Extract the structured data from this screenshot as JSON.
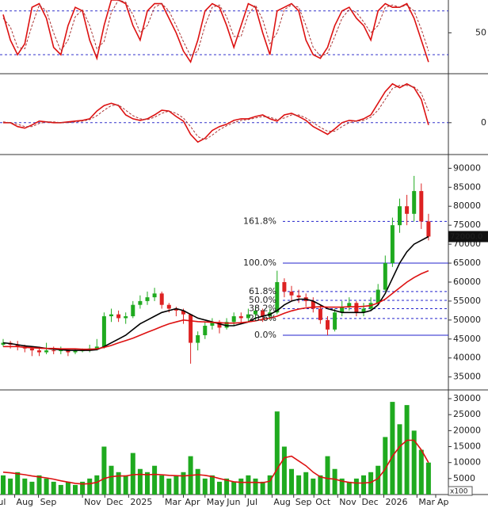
{
  "chart_data": [
    {
      "type": "line",
      "ylim": [
        -5,
        95
      ],
      "yticks": [
        50
      ],
      "levels": [
        20,
        80
      ],
      "level_color": "#3333cc",
      "series": [
        {
          "color": "#dd1111",
          "values": [
            75,
            40,
            20,
            35,
            85,
            90,
            70,
            30,
            20,
            60,
            85,
            80,
            40,
            15,
            60,
            95,
            95,
            90,
            60,
            40,
            80,
            90,
            90,
            70,
            50,
            25,
            10,
            40,
            80,
            90,
            85,
            60,
            30,
            60,
            90,
            85,
            50,
            20,
            80,
            85,
            90,
            80,
            40,
            20,
            15,
            30,
            60,
            80,
            85,
            70,
            60,
            40,
            80,
            90,
            85,
            85,
            90,
            70,
            40,
            10
          ]
        },
        {
          "color": "#aa3333",
          "dash": true,
          "values": [
            70,
            58,
            30,
            28,
            60,
            88,
            80,
            50,
            25,
            40,
            72,
            82,
            60,
            28,
            38,
            78,
            95,
            92,
            75,
            50,
            60,
            85,
            90,
            80,
            60,
            38,
            18,
            25,
            60,
            85,
            88,
            72,
            45,
            45,
            75,
            88,
            68,
            35,
            50,
            82,
            88,
            85,
            60,
            30,
            18,
            22,
            45,
            70,
            82,
            78,
            65,
            50,
            60,
            85,
            88,
            85,
            88,
            80,
            55,
            25
          ]
        }
      ]
    },
    {
      "type": "line",
      "ylim": [
        -40,
        60
      ],
      "yticks": [
        0
      ],
      "levels": [
        0
      ],
      "level_color": "#3333cc",
      "series": [
        {
          "color": "#dd1111",
          "values": [
            0,
            0,
            -5,
            -7,
            -3,
            2,
            1,
            0,
            0,
            1,
            2,
            3,
            5,
            15,
            22,
            25,
            22,
            10,
            5,
            3,
            5,
            10,
            16,
            15,
            8,
            2,
            -15,
            -25,
            -20,
            -10,
            -5,
            -2,
            3,
            5,
            5,
            8,
            10,
            5,
            2,
            10,
            12,
            8,
            3,
            -5,
            -10,
            -15,
            -8,
            0,
            3,
            2,
            5,
            10,
            25,
            40,
            50,
            45,
            50,
            45,
            30,
            -3
          ]
        },
        {
          "color": "#aa3333",
          "dash": true,
          "values": [
            1,
            0,
            -2,
            -5,
            -5,
            -1,
            1,
            1,
            0,
            0,
            1,
            2,
            4,
            9,
            16,
            22,
            23,
            16,
            9,
            5,
            4,
            7,
            12,
            15,
            12,
            6,
            -5,
            -18,
            -22,
            -16,
            -9,
            -4,
            0,
            3,
            4,
            6,
            8,
            7,
            4,
            6,
            10,
            10,
            6,
            0,
            -6,
            -11,
            -11,
            -5,
            0,
            2,
            3,
            7,
            16,
            30,
            44,
            48,
            48,
            46,
            38,
            15
          ]
        }
      ]
    },
    {
      "type": "candlestick",
      "ylim": [
        32000,
        93000
      ],
      "yticks": [
        35000,
        40000,
        45000,
        50000,
        55000,
        60000,
        65000,
        70000,
        75000,
        80000,
        85000,
        90000
      ],
      "up_color": "#1faa1f",
      "down_color": "#dd2222",
      "open": [
        43500,
        44000,
        43500,
        43000,
        42500,
        42000,
        41500,
        42000,
        41800,
        42200,
        41500,
        42000,
        42000,
        42500,
        43000,
        51000,
        51500,
        50500,
        51000,
        54000,
        55000,
        56000,
        57000,
        54000,
        53000,
        52500,
        51500,
        44000,
        46000,
        48500,
        49500,
        48000,
        49500,
        51000,
        50500,
        51500,
        52500,
        51000,
        52000,
        60000,
        57500,
        56500,
        56000,
        55000,
        53000,
        50000,
        47500,
        52000,
        53500,
        54500,
        52000,
        53000,
        54500,
        58000,
        65000,
        75000,
        80000,
        78000,
        84000,
        76000
      ],
      "high": [
        45000,
        44500,
        44500,
        43500,
        43000,
        43000,
        44000,
        43000,
        43000,
        42500,
        42500,
        42500,
        43500,
        45000,
        52000,
        53000,
        52500,
        52000,
        55000,
        56500,
        57500,
        58500,
        57500,
        54500,
        53500,
        53000,
        51500,
        47000,
        49500,
        50500,
        50000,
        50500,
        52000,
        52000,
        53000,
        53500,
        53000,
        53000,
        63000,
        61000,
        59000,
        58000,
        57000,
        56000,
        54000,
        51000,
        53000,
        55000,
        56000,
        55000,
        54500,
        56000,
        59500,
        67000,
        77000,
        82000,
        83000,
        88000,
        86000,
        78000
      ],
      "low": [
        43000,
        42500,
        42000,
        41500,
        40500,
        40500,
        41000,
        41000,
        41000,
        40500,
        41000,
        41500,
        41500,
        42000,
        42500,
        49500,
        49500,
        49000,
        50500,
        53000,
        54000,
        55000,
        53000,
        52000,
        51000,
        49000,
        38500,
        42000,
        45000,
        47500,
        46500,
        47500,
        48500,
        49000,
        49500,
        50000,
        49500,
        50000,
        51500,
        56000,
        55000,
        54500,
        53500,
        52000,
        49000,
        46000,
        47000,
        51000,
        52500,
        51000,
        51000,
        52500,
        54000,
        57500,
        64000,
        73000,
        75000,
        76000,
        74000,
        71000
      ],
      "close": [
        44000,
        43500,
        43000,
        42500,
        42000,
        41500,
        42000,
        41800,
        42200,
        41500,
        42000,
        42000,
        42500,
        43000,
        51000,
        51500,
        50500,
        51000,
        54000,
        55000,
        56000,
        57000,
        54000,
        53000,
        52500,
        51500,
        44000,
        46000,
        48500,
        49500,
        48000,
        49500,
        51000,
        50500,
        51500,
        52500,
        51000,
        52000,
        60000,
        57500,
        56500,
        56000,
        55000,
        53000,
        50000,
        47500,
        52000,
        53500,
        54500,
        52000,
        53000,
        54500,
        58000,
        65000,
        75000,
        80000,
        78000,
        84000,
        76000,
        72000
      ],
      "overlays": [
        {
          "color": "#000000",
          "values": [
            44000,
            43800,
            43500,
            43200,
            43000,
            42800,
            42500,
            42300,
            42200,
            42000,
            42000,
            42000,
            42000,
            42200,
            43000,
            44000,
            45000,
            46000,
            47500,
            49000,
            50000,
            51000,
            52000,
            52500,
            53000,
            52500,
            51500,
            50500,
            50000,
            49500,
            49000,
            48500,
            48500,
            49000,
            49500,
            50500,
            51000,
            51500,
            52500,
            54000,
            55000,
            55500,
            55500,
            55000,
            54000,
            53000,
            52500,
            52000,
            52000,
            52000,
            52000,
            52500,
            54000,
            57000,
            61000,
            65000,
            68000,
            70000,
            71000,
            72000
          ]
        },
        {
          "color": "#dd1111",
          "values": [
            43000,
            43000,
            43000,
            42800,
            42700,
            42600,
            42500,
            42500,
            42400,
            42400,
            42400,
            42300,
            42300,
            42400,
            42800,
            43300,
            44000,
            44600,
            45200,
            46000,
            46800,
            47500,
            48300,
            49000,
            49500,
            50000,
            49800,
            49600,
            49500,
            49400,
            49300,
            49200,
            49200,
            49300,
            49500,
            49800,
            50200,
            50500,
            51000,
            51800,
            52400,
            52900,
            53200,
            53400,
            53500,
            53400,
            53400,
            53400,
            53500,
            53500,
            53600,
            53800,
            54500,
            55500,
            57000,
            58500,
            60000,
            61200,
            62200,
            63000
          ]
        }
      ],
      "fib_levels": [
        {
          "label": "161.8%",
          "value": 76000,
          "dashed": true
        },
        {
          "label": "100.0%",
          "value": 65000,
          "dashed": false
        },
        {
          "label": "61.8%",
          "value": 57500,
          "dashed": true
        },
        {
          "label": "50.0%",
          "value": 55200,
          "dashed": true
        },
        {
          "label": "38.2%",
          "value": 53000,
          "dashed": true
        },
        {
          "label": "23.6%",
          "value": 50400,
          "dashed": true
        },
        {
          "label": "0.0%",
          "value": 46000,
          "dashed": false
        }
      ],
      "fib_color": "#2222cc",
      "price_tag": {
        "value": 72000,
        "label": "72000.0"
      }
    },
    {
      "type": "bar",
      "ylim": [
        0,
        32000
      ],
      "yticks": [
        5000,
        10000,
        15000,
        20000,
        25000,
        30000
      ],
      "unit_label": "x100",
      "color": "#1faa1f",
      "values": [
        6000,
        5000,
        7000,
        5000,
        4000,
        6000,
        5000,
        4000,
        3000,
        4000,
        3000,
        4000,
        5000,
        6000,
        15000,
        9000,
        7000,
        6000,
        13000,
        8000,
        7000,
        9000,
        6000,
        5000,
        6000,
        7000,
        12000,
        8000,
        5000,
        6000,
        4000,
        5000,
        4000,
        5000,
        6000,
        5000,
        4000,
        6000,
        26000,
        15000,
        8000,
        6000,
        7000,
        5000,
        6000,
        12000,
        8000,
        5000,
        4000,
        5000,
        6000,
        7000,
        9000,
        18000,
        29000,
        22000,
        28000,
        20000,
        14000,
        10000
      ],
      "overlays": [
        {
          "color": "#dd1111",
          "values": [
            7000,
            6800,
            6500,
            6200,
            5800,
            5500,
            5200,
            4800,
            4300,
            3900,
            3500,
            3300,
            3400,
            3800,
            5000,
            5600,
            5800,
            5800,
            6200,
            6300,
            6200,
            6300,
            6200,
            6000,
            5900,
            5800,
            6000,
            6200,
            6000,
            5600,
            5000,
            4500,
            4000,
            3800,
            3800,
            3800,
            3700,
            4200,
            8000,
            11500,
            12000,
            10500,
            9000,
            7000,
            5500,
            5000,
            4800,
            4200,
            3800,
            3600,
            3600,
            3800,
            5000,
            8000,
            12000,
            15000,
            17000,
            17000,
            14000,
            10000
          ]
        }
      ],
      "xticks": [
        {
          "value": -1.3,
          "label": "Jul"
        },
        {
          "value": 1.6,
          "label": "Aug"
        },
        {
          "value": 4.9,
          "label": "Sep"
        },
        {
          "value": 11.0,
          "label": "Nov"
        },
        {
          "value": 14.1,
          "label": "Dec"
        },
        {
          "value": 17.4,
          "label": "2025"
        },
        {
          "value": 22.2,
          "label": "Mar"
        },
        {
          "value": 25.0,
          "label": "Apr"
        },
        {
          "value": 28.0,
          "label": "May"
        },
        {
          "value": 30.8,
          "label": "Jun"
        },
        {
          "value": 33.6,
          "label": "Jul"
        },
        {
          "value": 37.3,
          "label": "Aug"
        },
        {
          "value": 40.3,
          "label": "Sep"
        },
        {
          "value": 43.1,
          "label": "Oct"
        },
        {
          "value": 46.4,
          "label": "Nov"
        },
        {
          "value": 49.5,
          "label": "Dec"
        },
        {
          "value": 52.8,
          "label": "2026"
        },
        {
          "value": 57.4,
          "label": "Mar"
        },
        {
          "value": 60.0,
          "label": "Apr"
        }
      ]
    }
  ]
}
